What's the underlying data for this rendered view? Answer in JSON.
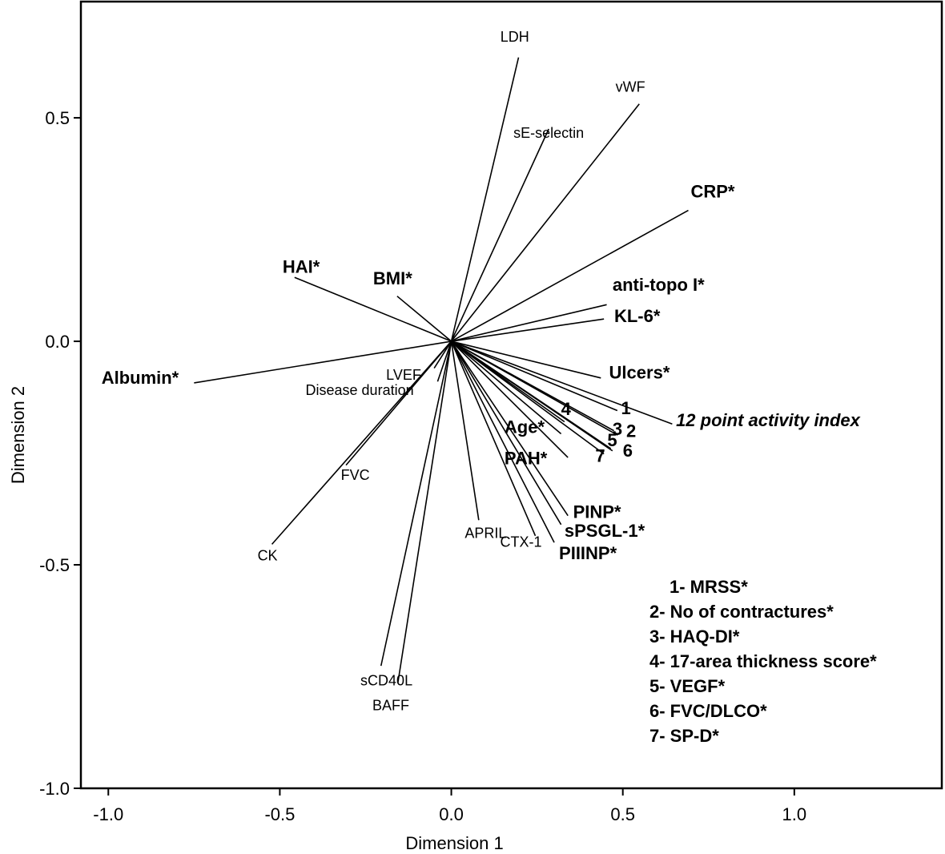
{
  "chart_data": {
    "type": "biplot",
    "xlabel": "Dimension 1",
    "ylabel": "Dimension 2",
    "xlim": [
      -1.08,
      1.43
    ],
    "ylim": [
      -1.0,
      0.76
    ],
    "xticks": [
      {
        "value": -1.0,
        "label": "-1.0"
      },
      {
        "value": -0.5,
        "label": "-0.5"
      },
      {
        "value": 0.0,
        "label": "0.0"
      },
      {
        "value": 0.5,
        "label": "0.5"
      },
      {
        "value": 1.0,
        "label": "1.0"
      }
    ],
    "yticks": [
      {
        "value": 0.5,
        "label": "0.5"
      },
      {
        "value": 0.0,
        "label": "0.0"
      },
      {
        "value": -0.5,
        "label": "-0.5"
      },
      {
        "value": -1.0,
        "label": "-1.0"
      }
    ],
    "vectors": [
      {
        "label": "LDH",
        "x": 0.196,
        "y": 0.635,
        "lx": 0.185,
        "ly": 0.67,
        "style": "normal",
        "anchor": "middle"
      },
      {
        "label": "vWF",
        "x": 0.548,
        "y": 0.531,
        "lx": 0.522,
        "ly": 0.558,
        "style": "normal",
        "anchor": "middle"
      },
      {
        "label": "sE-selectin",
        "x": 0.284,
        "y": 0.475,
        "lx": 0.284,
        "ly": 0.455,
        "style": "normal",
        "anchor": "middle"
      },
      {
        "label": "CRP*",
        "x": 0.691,
        "y": 0.293,
        "lx": 0.698,
        "ly": 0.322,
        "style": "bold",
        "anchor": "start"
      },
      {
        "label": "HAI*",
        "x": -0.457,
        "y": 0.143,
        "lx": -0.492,
        "ly": 0.153,
        "style": "bold",
        "anchor": "start"
      },
      {
        "label": "BMI*",
        "x": -0.158,
        "y": 0.101,
        "lx": -0.228,
        "ly": 0.127,
        "style": "bold",
        "anchor": "start"
      },
      {
        "label": "anti-topo I*",
        "x": 0.453,
        "y": 0.082,
        "lx": 0.47,
        "ly": 0.113,
        "style": "bold",
        "anchor": "start"
      },
      {
        "label": "KL-6*",
        "x": 0.445,
        "y": 0.05,
        "lx": 0.475,
        "ly": 0.043,
        "style": "bold",
        "anchor": "start"
      },
      {
        "label": "Albumin*",
        "x": -0.75,
        "y": -0.093,
        "lx": -1.02,
        "ly": -0.095,
        "style": "bold",
        "anchor": "start"
      },
      {
        "label": "Ulcers*",
        "x": 0.436,
        "y": -0.082,
        "lx": 0.46,
        "ly": -0.083,
        "style": "bold",
        "anchor": "start"
      },
      {
        "label": "LVEF",
        "x": -0.05,
        "y": -0.06,
        "lx": -0.19,
        "ly": -0.086,
        "style": "normal",
        "anchor": "start"
      },
      {
        "label": "Disease duration",
        "x": -0.04,
        "y": -0.09,
        "lx": -0.425,
        "ly": -0.12,
        "style": "normal",
        "anchor": "start"
      },
      {
        "label": "1",
        "x": 0.484,
        "y": -0.155,
        "lx": 0.495,
        "ly": -0.163,
        "style": "bold",
        "anchor": "start"
      },
      {
        "label": "12 point activity index",
        "x": 0.644,
        "y": -0.185,
        "lx": 0.655,
        "ly": -0.19,
        "style": "italic",
        "anchor": "start"
      },
      {
        "label": "4",
        "x": 0.33,
        "y": -0.18,
        "lx": 0.32,
        "ly": -0.165,
        "style": "bold",
        "anchor": "start"
      },
      {
        "label": "3",
        "x": 0.474,
        "y": -0.2,
        "lx": 0.47,
        "ly": -0.21,
        "style": "bold",
        "anchor": "start"
      },
      {
        "label": "2",
        "x": 0.485,
        "y": -0.21,
        "lx": 0.51,
        "ly": -0.214,
        "style": "bold",
        "anchor": "start"
      },
      {
        "label": "5",
        "x": 0.465,
        "y": -0.24,
        "lx": 0.455,
        "ly": -0.235,
        "style": "bold",
        "anchor": "start"
      },
      {
        "label": "6",
        "x": 0.47,
        "y": -0.245,
        "lx": 0.5,
        "ly": -0.258,
        "style": "bold",
        "anchor": "start"
      },
      {
        "label": "7",
        "x": 0.445,
        "y": -0.252,
        "lx": 0.42,
        "ly": -0.27,
        "style": "bold",
        "anchor": "start"
      },
      {
        "label": "Age*",
        "x": 0.32,
        "y": -0.207,
        "lx": 0.155,
        "ly": -0.205,
        "style": "bold",
        "anchor": "start"
      },
      {
        "label": "PAH*",
        "x": 0.34,
        "y": -0.26,
        "lx": 0.155,
        "ly": -0.275,
        "style": "bold",
        "anchor": "start"
      },
      {
        "label": "PINP*",
        "x": 0.34,
        "y": -0.39,
        "lx": 0.355,
        "ly": -0.395,
        "style": "bold",
        "anchor": "start"
      },
      {
        "label": "sPSGL-1*",
        "x": 0.32,
        "y": -0.41,
        "lx": 0.33,
        "ly": -0.437,
        "style": "bold",
        "anchor": "start"
      },
      {
        "label": "PIIINP*",
        "x": 0.3,
        "y": -0.45,
        "lx": 0.314,
        "ly": -0.487,
        "style": "bold",
        "anchor": "start"
      },
      {
        "label": "CTX-1",
        "x": 0.245,
        "y": -0.435,
        "lx": 0.203,
        "ly": -0.46,
        "style": "normal",
        "anchor": "middle"
      },
      {
        "label": "APRIL",
        "x": 0.08,
        "y": -0.4,
        "lx": 0.1,
        "ly": -0.44,
        "style": "normal",
        "anchor": "middle"
      },
      {
        "label": "FVC",
        "x": -0.307,
        "y": -0.277,
        "lx": -0.28,
        "ly": -0.31,
        "style": "normal",
        "anchor": "middle"
      },
      {
        "label": "CK",
        "x": -0.523,
        "y": -0.454,
        "lx": -0.565,
        "ly": -0.49,
        "style": "normal",
        "anchor": "start"
      },
      {
        "label": "sCD40L",
        "x": -0.205,
        "y": -0.726,
        "lx": -0.265,
        "ly": -0.77,
        "style": "normal",
        "anchor": "start"
      },
      {
        "label": "BAFF",
        "x": -0.156,
        "y": -0.765,
        "lx": -0.23,
        "ly": -0.825,
        "style": "normal",
        "anchor": "start"
      }
    ],
    "legend": [
      "1- MRSS*",
      "2- No of contractures*",
      "3- HAQ-DI*",
      "4- 17-area thickness score*",
      "5- VEGF*",
      "6- FVC/DLCO*",
      "7- SP-D*"
    ],
    "legend_position": "bottom-right"
  }
}
